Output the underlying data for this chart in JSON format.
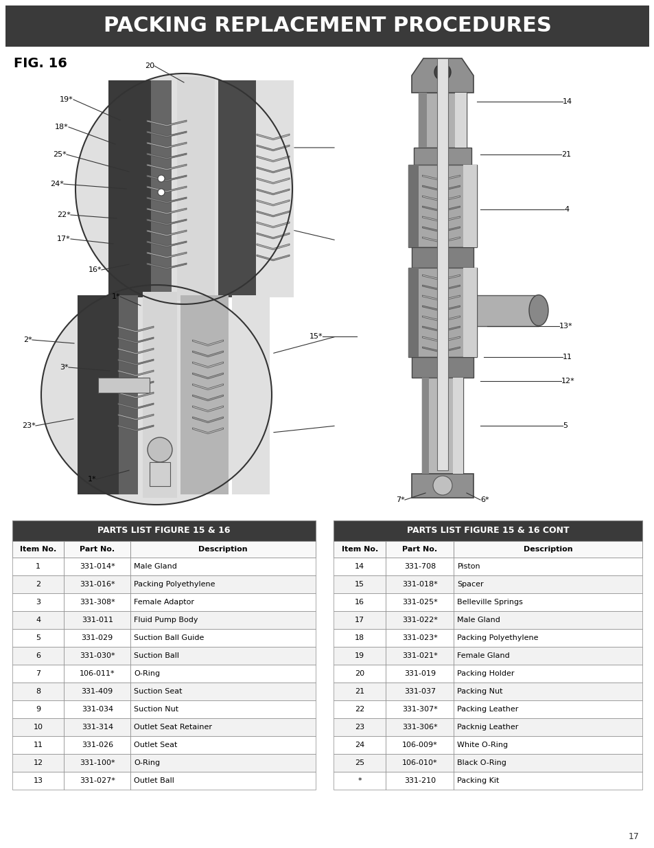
{
  "title": "PACKING REPLACEMENT PROCEDURES",
  "fig_label": "FIG. 16",
  "page_number": "17",
  "bg": "#ffffff",
  "header_bg": "#3a3a3a",
  "header_fg": "#ffffff",
  "table1_title": "PARTS LIST FIGURE 15 & 16",
  "table2_title": "PARTS LIST FIGURE 15 & 16 CONT",
  "table_hdr_bg": "#3a3a3a",
  "table_hdr_fg": "#ffffff",
  "table_col_hdr_bg": "#ffffff",
  "table_row_bg1": "#ffffff",
  "table_row_bg2": "#f2f2f2",
  "table_border": "#888888",
  "col_headers": [
    "Item No.",
    "Part No.",
    "Description"
  ],
  "table1_rows": [
    [
      "1",
      "331-014*",
      "Male Gland"
    ],
    [
      "2",
      "331-016*",
      "Packing Polyethylene"
    ],
    [
      "3",
      "331-308*",
      "Female Adaptor"
    ],
    [
      "4",
      "331-011",
      "Fluid Pump Body"
    ],
    [
      "5",
      "331-029",
      "Suction Ball Guide"
    ],
    [
      "6",
      "331-030*",
      "Suction Ball"
    ],
    [
      "7",
      "106-011*",
      "O-Ring"
    ],
    [
      "8",
      "331-409",
      "Suction Seat"
    ],
    [
      "9",
      "331-034",
      "Suction Nut"
    ],
    [
      "10",
      "331-314",
      "Outlet Seat Retainer"
    ],
    [
      "11",
      "331-026",
      "Outlet Seat"
    ],
    [
      "12",
      "331-100*",
      "O-Ring"
    ],
    [
      "13",
      "331-027*",
      "Outlet Ball"
    ]
  ],
  "table2_rows": [
    [
      "14",
      "331-708",
      "Piston"
    ],
    [
      "15",
      "331-018*",
      "Spacer"
    ],
    [
      "16",
      "331-025*",
      "Belleville Springs"
    ],
    [
      "17",
      "331-022*",
      "Male Gland"
    ],
    [
      "18",
      "331-023*",
      "Packing Polyethylene"
    ],
    [
      "19",
      "331-021*",
      "Female Gland"
    ],
    [
      "20",
      "331-019",
      "Packing Holder"
    ],
    [
      "21",
      "331-037",
      "Packing Nut"
    ],
    [
      "22",
      "331-307*",
      "Packing Leather"
    ],
    [
      "23",
      "331-306*",
      "Packnig Leather"
    ],
    [
      "24",
      "106-009*",
      "White O-Ring"
    ],
    [
      "25",
      "106-010*",
      "Black O-Ring"
    ],
    [
      "*",
      "331-210",
      "Packing Kit"
    ]
  ]
}
